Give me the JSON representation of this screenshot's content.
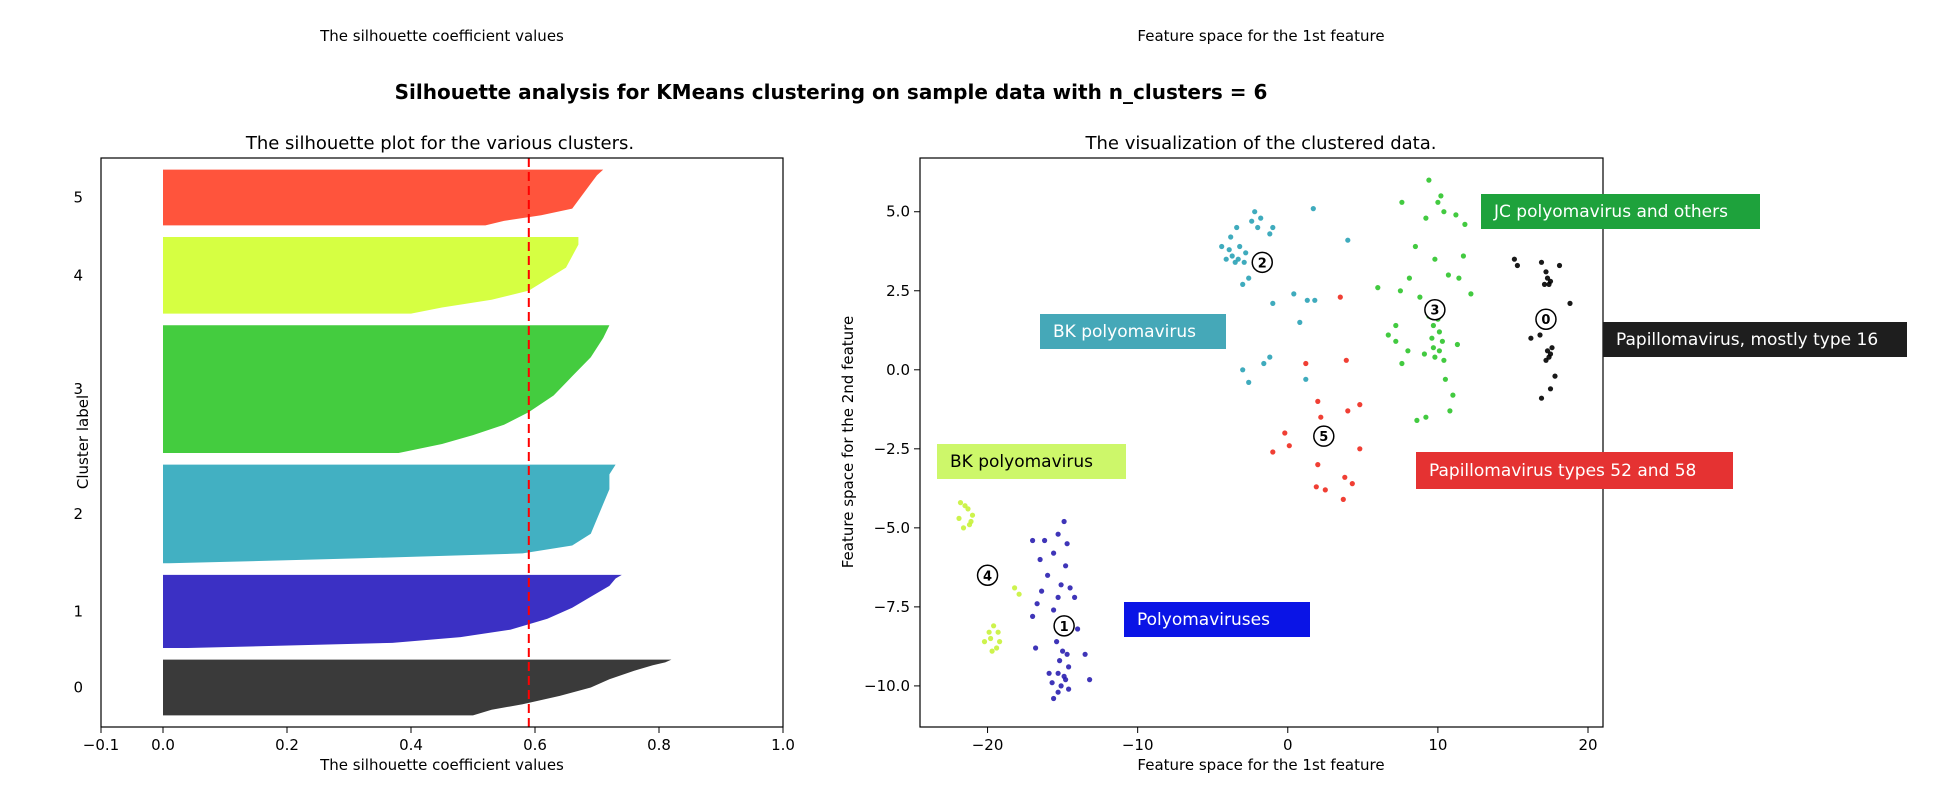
{
  "top_labels": {
    "left": "The silhouette coefficient values",
    "right": "Feature space for the 1st feature"
  },
  "suptitle": "Silhouette analysis for KMeans clustering on sample data with n_clusters = 6",
  "colors": {
    "c0": "#3a3a3a",
    "c1": "#3b30c4",
    "c2": "#42b0c2",
    "c3": "#44cc3f",
    "c4": "#d6ff42",
    "c5": "#ff543c",
    "avg_line": "#ff0000",
    "scatter0": "#000000",
    "scatter1": "#2a1fb0",
    "scatter2": "#2aa2b6",
    "scatter3": "#2ec42b",
    "scatter4": "#c8f23a",
    "scatter5": "#ee2a1e"
  },
  "chart_data": [
    {
      "type": "area",
      "title": "The silhouette plot for the various clusters.",
      "xlabel": "The silhouette coefficient values",
      "ylabel": "Cluster label",
      "xlim": [
        -0.1,
        1.0
      ],
      "xticks": [
        "−0.1",
        "0.0",
        "0.2",
        "0.4",
        "0.6",
        "0.8",
        "1.0"
      ],
      "average_silhouette": 0.59,
      "clusters": [
        {
          "label": "0",
          "color": "#3a3a3a",
          "size": 48,
          "profile": [
            [
              0,
              0.82
            ],
            [
              0.05,
              0.81
            ],
            [
              0.1,
              0.79
            ],
            [
              0.2,
              0.76
            ],
            [
              0.35,
              0.72
            ],
            [
              0.5,
              0.69
            ],
            [
              0.65,
              0.64
            ],
            [
              0.8,
              0.58
            ],
            [
              0.9,
              0.53
            ],
            [
              1.0,
              0.5
            ]
          ]
        },
        {
          "label": "1",
          "color": "#3b30c4",
          "size": 63,
          "profile": [
            [
              0,
              0.74
            ],
            [
              0.05,
              0.73
            ],
            [
              0.15,
              0.72
            ],
            [
              0.3,
              0.69
            ],
            [
              0.45,
              0.66
            ],
            [
              0.6,
              0.62
            ],
            [
              0.75,
              0.56
            ],
            [
              0.85,
              0.48
            ],
            [
              0.93,
              0.37
            ],
            [
              1.0,
              0.04
            ]
          ]
        },
        {
          "label": "2",
          "color": "#42b0c2",
          "size": 85,
          "profile": [
            [
              0,
              0.73
            ],
            [
              0.1,
              0.72
            ],
            [
              0.25,
              0.72
            ],
            [
              0.4,
              0.71
            ],
            [
              0.55,
              0.7
            ],
            [
              0.7,
              0.69
            ],
            [
              0.82,
              0.66
            ],
            [
              0.9,
              0.58
            ],
            [
              0.95,
              0.32
            ],
            [
              1.0,
              0.01
            ]
          ]
        },
        {
          "label": "3",
          "color": "#44cc3f",
          "size": 110,
          "profile": [
            [
              0,
              0.72
            ],
            [
              0.1,
              0.71
            ],
            [
              0.25,
              0.69
            ],
            [
              0.4,
              0.66
            ],
            [
              0.55,
              0.63
            ],
            [
              0.68,
              0.59
            ],
            [
              0.78,
              0.55
            ],
            [
              0.86,
              0.5
            ],
            [
              0.93,
              0.45
            ],
            [
              1.0,
              0.38
            ]
          ]
        },
        {
          "label": "4",
          "color": "#d6ff42",
          "size": 66,
          "profile": [
            [
              0,
              0.67
            ],
            [
              0.1,
              0.67
            ],
            [
              0.25,
              0.66
            ],
            [
              0.4,
              0.65
            ],
            [
              0.55,
              0.62
            ],
            [
              0.7,
              0.59
            ],
            [
              0.82,
              0.53
            ],
            [
              0.92,
              0.45
            ],
            [
              1.0,
              0.4
            ]
          ]
        },
        {
          "label": "5",
          "color": "#ff543c",
          "size": 48,
          "profile": [
            [
              0,
              0.71
            ],
            [
              0.1,
              0.7
            ],
            [
              0.25,
              0.69
            ],
            [
              0.4,
              0.68
            ],
            [
              0.55,
              0.67
            ],
            [
              0.7,
              0.66
            ],
            [
              0.82,
              0.61
            ],
            [
              0.92,
              0.55
            ],
            [
              1.0,
              0.52
            ]
          ]
        }
      ]
    },
    {
      "type": "scatter",
      "title": "The visualization of the clustered data.",
      "xlabel": "Feature space for the 1st feature",
      "ylabel": "Feature space for the 2nd feature",
      "xlim": [
        -24.5,
        21
      ],
      "ylim": [
        -11.3,
        6.7
      ],
      "xticks": [
        -20,
        -10,
        0,
        10,
        20
      ],
      "yticks": [
        5.0,
        2.5,
        0.0,
        -2.5,
        -5.0,
        -7.5,
        -10.0
      ],
      "ytick_labels": [
        "5.0",
        "2.5",
        "0.0",
        "−2.5",
        "−5.0",
        "−7.5",
        "−10.0"
      ],
      "xtick_labels": [
        "−20",
        "−10",
        "0",
        "10",
        "20"
      ],
      "centers": [
        {
          "label": "0",
          "x": 17.2,
          "y": 1.6
        },
        {
          "label": "1",
          "x": -14.9,
          "y": -8.1
        },
        {
          "label": "2",
          "x": -1.7,
          "y": 3.4
        },
        {
          "label": "3",
          "x": 9.8,
          "y": 1.9
        },
        {
          "label": "4",
          "x": -20.0,
          "y": -6.5
        },
        {
          "label": "5",
          "x": 2.4,
          "y": -2.1
        }
      ],
      "points": [
        {
          "cluster": 0,
          "xy": [
            [
              15.1,
              3.5
            ],
            [
              15.3,
              3.3
            ],
            [
              16.9,
              3.4
            ],
            [
              17.2,
              3.1
            ],
            [
              17.3,
              2.9
            ],
            [
              17.5,
              2.8
            ],
            [
              17.1,
              2.7
            ],
            [
              17.4,
              2.7
            ],
            [
              18.1,
              3.3
            ],
            [
              18.8,
              2.1
            ],
            [
              16.2,
              1.0
            ],
            [
              16.8,
              1.1
            ],
            [
              17.3,
              0.6
            ],
            [
              17.5,
              0.5
            ],
            [
              17.4,
              0.4
            ],
            [
              17.6,
              0.7
            ],
            [
              17.2,
              0.3
            ],
            [
              17.8,
              -0.2
            ],
            [
              16.9,
              -0.9
            ],
            [
              17.5,
              -0.6
            ]
          ]
        },
        {
          "cluster": 1,
          "xy": [
            [
              -14.9,
              -4.8
            ],
            [
              -15.3,
              -5.2
            ],
            [
              -14.7,
              -5.5
            ],
            [
              -16.2,
              -5.4
            ],
            [
              -17.0,
              -5.4
            ],
            [
              -15.6,
              -5.8
            ],
            [
              -16.5,
              -6.0
            ],
            [
              -14.8,
              -6.2
            ],
            [
              -16.0,
              -6.5
            ],
            [
              -15.1,
              -6.8
            ],
            [
              -14.5,
              -6.9
            ],
            [
              -16.4,
              -7.0
            ],
            [
              -15.3,
              -7.2
            ],
            [
              -16.7,
              -7.4
            ],
            [
              -14.2,
              -7.2
            ],
            [
              -17.0,
              -7.8
            ],
            [
              -15.6,
              -7.6
            ],
            [
              -14.0,
              -8.2
            ],
            [
              -15.4,
              -8.6
            ],
            [
              -16.8,
              -8.8
            ],
            [
              -13.5,
              -9.0
            ],
            [
              -13.2,
              -9.8
            ],
            [
              -15.0,
              -8.9
            ],
            [
              -14.7,
              -9.0
            ],
            [
              -15.2,
              -9.2
            ],
            [
              -14.6,
              -9.4
            ],
            [
              -15.3,
              -9.6
            ],
            [
              -14.9,
              -9.7
            ],
            [
              -14.8,
              -9.8
            ],
            [
              -15.1,
              -10.0
            ],
            [
              -14.6,
              -10.1
            ],
            [
              -15.3,
              -10.2
            ],
            [
              -15.7,
              -9.9
            ],
            [
              -15.9,
              -9.6
            ],
            [
              -15.6,
              -10.4
            ]
          ]
        },
        {
          "cluster": 2,
          "xy": [
            [
              -2.2,
              5.0
            ],
            [
              -1.8,
              4.8
            ],
            [
              -2.0,
              4.5
            ],
            [
              -2.4,
              4.7
            ],
            [
              -3.4,
              4.5
            ],
            [
              -3.8,
              4.2
            ],
            [
              -3.9,
              3.8
            ],
            [
              -3.7,
              3.6
            ],
            [
              -3.5,
              3.4
            ],
            [
              -3.3,
              3.5
            ],
            [
              -2.8,
              3.7
            ],
            [
              -2.9,
              3.4
            ],
            [
              -3.2,
              3.9
            ],
            [
              -4.1,
              3.5
            ],
            [
              -4.4,
              3.9
            ],
            [
              -3.0,
              2.7
            ],
            [
              -2.6,
              2.9
            ],
            [
              -1.2,
              4.3
            ],
            [
              -1.0,
              4.5
            ],
            [
              1.7,
              5.1
            ],
            [
              4.0,
              4.1
            ],
            [
              0.4,
              2.4
            ],
            [
              1.3,
              2.2
            ],
            [
              1.8,
              2.2
            ],
            [
              -1.0,
              2.1
            ],
            [
              0.8,
              1.5
            ],
            [
              -1.2,
              0.4
            ],
            [
              -1.6,
              0.2
            ],
            [
              -3.0,
              0.0
            ],
            [
              -2.6,
              -0.4
            ],
            [
              1.2,
              -0.3
            ]
          ]
        },
        {
          "cluster": 3,
          "xy": [
            [
              9.4,
              6.0
            ],
            [
              10.2,
              5.5
            ],
            [
              10.0,
              5.3
            ],
            [
              10.4,
              5.0
            ],
            [
              7.6,
              5.3
            ],
            [
              9.2,
              4.8
            ],
            [
              11.2,
              4.9
            ],
            [
              11.8,
              4.6
            ],
            [
              8.5,
              3.9
            ],
            [
              11.7,
              3.6
            ],
            [
              9.8,
              3.5
            ],
            [
              8.1,
              2.9
            ],
            [
              10.7,
              3.0
            ],
            [
              11.4,
              2.9
            ],
            [
              12.2,
              2.4
            ],
            [
              6.0,
              2.6
            ],
            [
              7.5,
              2.5
            ],
            [
              8.8,
              2.3
            ],
            [
              9.4,
              1.7
            ],
            [
              10.0,
              1.6
            ],
            [
              9.7,
              1.4
            ],
            [
              10.1,
              1.2
            ],
            [
              9.6,
              1.0
            ],
            [
              10.3,
              0.9
            ],
            [
              9.7,
              0.7
            ],
            [
              10.1,
              0.6
            ],
            [
              9.8,
              0.4
            ],
            [
              10.4,
              0.3
            ],
            [
              7.2,
              1.4
            ],
            [
              6.7,
              1.1
            ],
            [
              8.0,
              0.6
            ],
            [
              7.6,
              0.2
            ],
            [
              9.1,
              0.5
            ],
            [
              11.3,
              0.8
            ],
            [
              7.2,
              0.9
            ],
            [
              9.2,
              -1.5
            ],
            [
              10.5,
              -0.3
            ],
            [
              11.0,
              -0.8
            ],
            [
              8.6,
              -1.6
            ],
            [
              10.8,
              -1.3
            ]
          ]
        },
        {
          "cluster": 4,
          "xy": [
            [
              -21.8,
              -4.2
            ],
            [
              -21.3,
              -4.4
            ],
            [
              -21.0,
              -4.6
            ],
            [
              -21.2,
              -4.9
            ],
            [
              -21.6,
              -5.0
            ],
            [
              -21.9,
              -4.7
            ],
            [
              -21.5,
              -4.3
            ],
            [
              -21.1,
              -4.8
            ],
            [
              -18.2,
              -6.9
            ],
            [
              -17.9,
              -7.1
            ],
            [
              -19.6,
              -8.1
            ],
            [
              -19.3,
              -8.3
            ],
            [
              -19.8,
              -8.5
            ],
            [
              -19.4,
              -8.8
            ],
            [
              -19.7,
              -8.9
            ],
            [
              -19.2,
              -8.6
            ],
            [
              -19.9,
              -8.3
            ],
            [
              -20.2,
              -8.6
            ]
          ]
        },
        {
          "cluster": 5,
          "xy": [
            [
              3.5,
              2.3
            ],
            [
              1.2,
              0.2
            ],
            [
              3.9,
              0.3
            ],
            [
              2.0,
              -1.0
            ],
            [
              4.0,
              -1.3
            ],
            [
              4.8,
              -1.1
            ],
            [
              2.2,
              -1.5
            ],
            [
              -0.2,
              -2.0
            ],
            [
              0.1,
              -2.4
            ],
            [
              4.8,
              -2.5
            ],
            [
              2.0,
              -3.0
            ],
            [
              3.8,
              -3.4
            ],
            [
              1.9,
              -3.7
            ],
            [
              2.5,
              -3.8
            ],
            [
              4.3,
              -3.6
            ],
            [
              3.7,
              -4.1
            ],
            [
              -1.0,
              -2.6
            ]
          ]
        }
      ],
      "annotations": [
        {
          "text": "JC polyomavirus and others",
          "bg": "#1ea23c",
          "fg": "#ffffff"
        },
        {
          "text": "BK polyomavirus",
          "bg": "#45a8b8",
          "fg": "#ffffff"
        },
        {
          "text": "Papillomavirus, mostly type 16",
          "bg": "#1e1e1e",
          "fg": "#ffffff"
        },
        {
          "text": "BK polyomavirus",
          "bg": "#cdf76a",
          "fg": "#000000"
        },
        {
          "text": "Papillomavirus types 52 and 58",
          "bg": "#e53232",
          "fg": "#ffffff"
        },
        {
          "text": "Polyomaviruses",
          "bg": "#0a14e6",
          "fg": "#ffffff"
        }
      ]
    }
  ]
}
